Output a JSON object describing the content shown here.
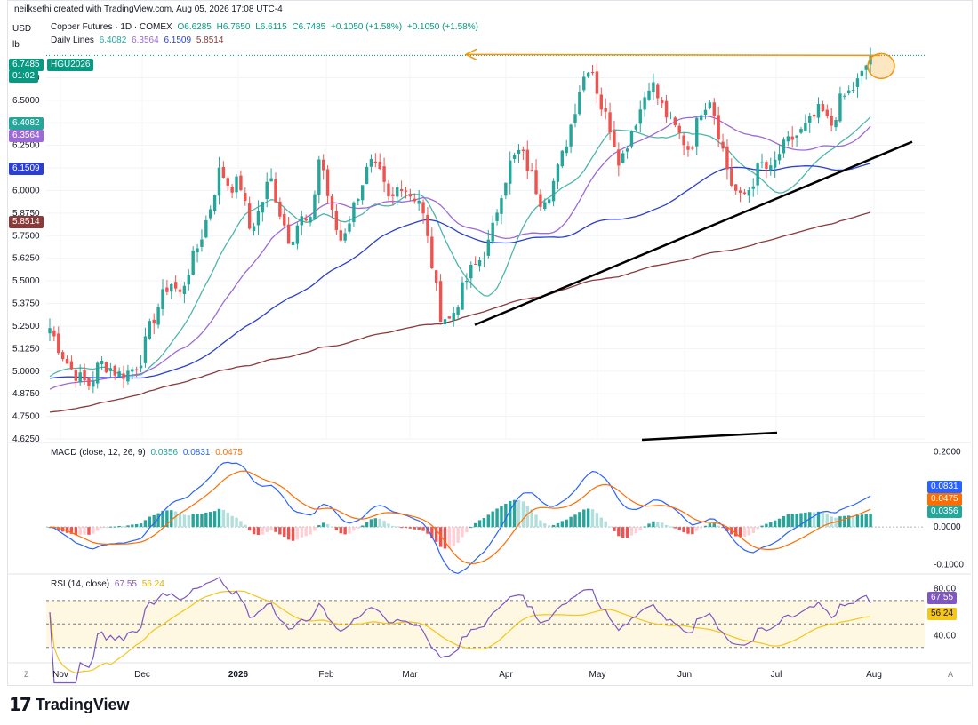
{
  "header": {
    "credit": "neilksethi created with TradingView.com, Aug 05, 2026 17:08 UTC-4",
    "currency": "USD",
    "unit": "lb"
  },
  "legend": {
    "title": "Copper Futures · 1D · COMEX",
    "o": "O6.6285",
    "h": "H6.7650",
    "l": "L6.6115",
    "c": "C6.7485",
    "chg1": "+0.1050 (+1.58%)",
    "chg2": "+0.1050 (+1.58%)",
    "lines_label": "Daily Lines",
    "v1": "6.4082",
    "v2": "6.3564",
    "v3": "6.1509",
    "v4": "5.8514"
  },
  "price_badges": {
    "last": "6.7485",
    "countdown": "01:02",
    "symbol": "HGU2026",
    "ma20": "6.4082",
    "ma50": "6.3564",
    "ma100": "6.1509",
    "ma200": "5.8514"
  },
  "macd_legend": {
    "label": "MACD (close, 12, 26, 9)",
    "hist": "0.0356",
    "macd": "0.0831",
    "signal": "0.0475"
  },
  "macd_badges": {
    "macd": "0.0831",
    "signal": "0.0475",
    "hist": "0.0356"
  },
  "rsi_legend": {
    "label": "RSI (14, close)",
    "rsi": "67.55",
    "ma": "56.24"
  },
  "rsi_badges": {
    "rsi": "67.55",
    "ma": "56.24"
  },
  "corner_left": "Z",
  "corner_right": "A",
  "brand": "TradingView",
  "colors": {
    "up": "#26a69a",
    "down": "#ef5350",
    "ma20": "#4db6ac",
    "ma50": "#9c6ad6",
    "ma100": "#2a3fcf",
    "ma200": "#8b3a3a",
    "macd": "#2962ff",
    "signal": "#ff6d00",
    "rsi": "#7e57c2",
    "rsi_ma": "#f5c518",
    "annotation": "#f0960e",
    "trend": "#000000"
  },
  "chart_data": [
    {
      "type": "candlestick",
      "title": "Copper Futures · 1D · COMEX",
      "ylim": [
        4.625,
        6.75
      ],
      "y_ticks": [
        "4.6250",
        "4.7500",
        "4.8750",
        "5.0000",
        "5.1250",
        "5.2500",
        "5.3750",
        "5.5000",
        "5.6250",
        "5.7500",
        "5.8750",
        "6.0000",
        "6.1250",
        "6.2500",
        "6.3750",
        "6.5000",
        "6.6250"
      ],
      "x_labels": [
        "Nov",
        "Dec",
        "2026",
        "Feb",
        "Mar",
        "Apr",
        "May",
        "Jun",
        "Jul",
        "Aug"
      ],
      "close_path": [
        5.24,
        5.12,
        5.02,
        4.96,
        4.92,
        5.05,
        5.02,
        4.98,
        5.0,
        5.05,
        5.24,
        5.38,
        5.5,
        5.42,
        5.58,
        5.72,
        5.9,
        6.12,
        6.02,
        6.05,
        5.78,
        5.9,
        6.08,
        5.88,
        5.72,
        5.85,
        5.8,
        6.22,
        5.9,
        5.72,
        5.85,
        6.02,
        6.15,
        6.08,
        5.92,
        6.05,
        5.98,
        5.95,
        5.65,
        5.32,
        5.28,
        5.42,
        5.55,
        5.62,
        5.72,
        5.98,
        6.15,
        6.22,
        6.1,
        5.95,
        6.0,
        6.15,
        6.35,
        6.58,
        6.72,
        6.48,
        6.35,
        6.15,
        6.32,
        6.45,
        6.62,
        6.48,
        6.38,
        6.3,
        6.22,
        6.45,
        6.52,
        6.28,
        6.05,
        5.95,
        6.02,
        6.15,
        6.1,
        6.22,
        6.28,
        6.32,
        6.38,
        6.45,
        6.35,
        6.5,
        6.55,
        6.62,
        6.75
      ],
      "moving_averages": [
        {
          "name": "6.4082",
          "color": "#4db6ac",
          "last": 6.4082
        },
        {
          "name": "6.3564",
          "color": "#9c6ad6",
          "last": 6.3564
        },
        {
          "name": "6.1509",
          "color": "#2a3fcf",
          "last": 6.1509
        },
        {
          "name": "5.8514",
          "color": "#8b3a3a",
          "last": 5.8514
        }
      ],
      "annotations": {
        "resistance_arrow_level": 6.7485,
        "trendline_1": [
          [
            5.2565,
            "Mar-21"
          ],
          [
            6.26,
            "Aug-05"
          ]
        ],
        "trendline_2_level_range": [
          4.64,
          4.66
        ]
      }
    },
    {
      "type": "line+bar",
      "title": "MACD (close, 12, 26, 9)",
      "ylim": [
        -0.12,
        0.22
      ],
      "y_ticks": [
        "0.2000",
        "0.0000",
        "-0.1000"
      ],
      "last": {
        "macd": 0.0831,
        "signal": 0.0475,
        "hist": 0.0356
      }
    },
    {
      "type": "line",
      "title": "RSI (14, close)",
      "ylim": [
        20,
        80
      ],
      "y_ticks": [
        "80.00",
        "60.00",
        "40.00"
      ],
      "last": {
        "rsi": 67.55,
        "ma": 56.24
      }
    }
  ]
}
